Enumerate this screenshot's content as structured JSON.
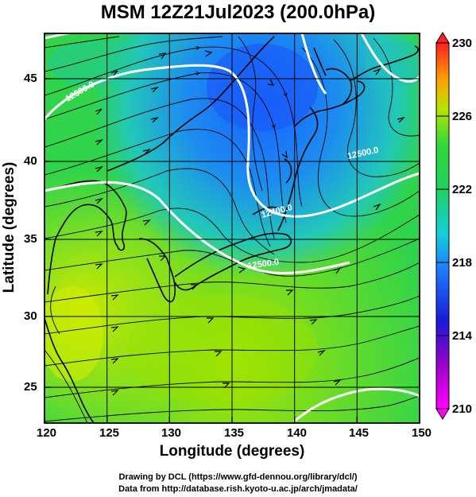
{
  "title": "MSM 12Z21Jul2023 (200.0hPa)",
  "xlabel": "Longitude (degrees)",
  "ylabel": "Latitude  (degrees)",
  "x_ticks": [
    "120",
    "125",
    "130",
    "135",
    "140",
    "145",
    "150"
  ],
  "y_ticks": [
    "45",
    "40",
    "35",
    "30",
    "25"
  ],
  "colorbar_ticks": [
    "230",
    "226",
    "222",
    "218",
    "214",
    "210"
  ],
  "contour_labels": [
    "12500.0",
    "12500.0",
    "12400.0",
    "12500.0"
  ],
  "credits": {
    "line1": "Drawing by DCL (https://www.gfd-dennou.org/library/dcl/)",
    "line2": "Data from http://database.rish.kyoto-u.ac.jp/arch/jmadata/"
  },
  "map": {
    "extent": {
      "lon": [
        120,
        150
      ],
      "lat": [
        22.5,
        47.5
      ]
    },
    "field": "temperature (K) at 200 hPa",
    "colorbar_range": [
      210,
      230
    ],
    "contour_interval_m": 100,
    "colors": {
      "cold": "#1e6bff",
      "mid": "#28d25a",
      "warm": "#b4e600",
      "contour": "#ffffff",
      "coast": "#000000"
    }
  }
}
